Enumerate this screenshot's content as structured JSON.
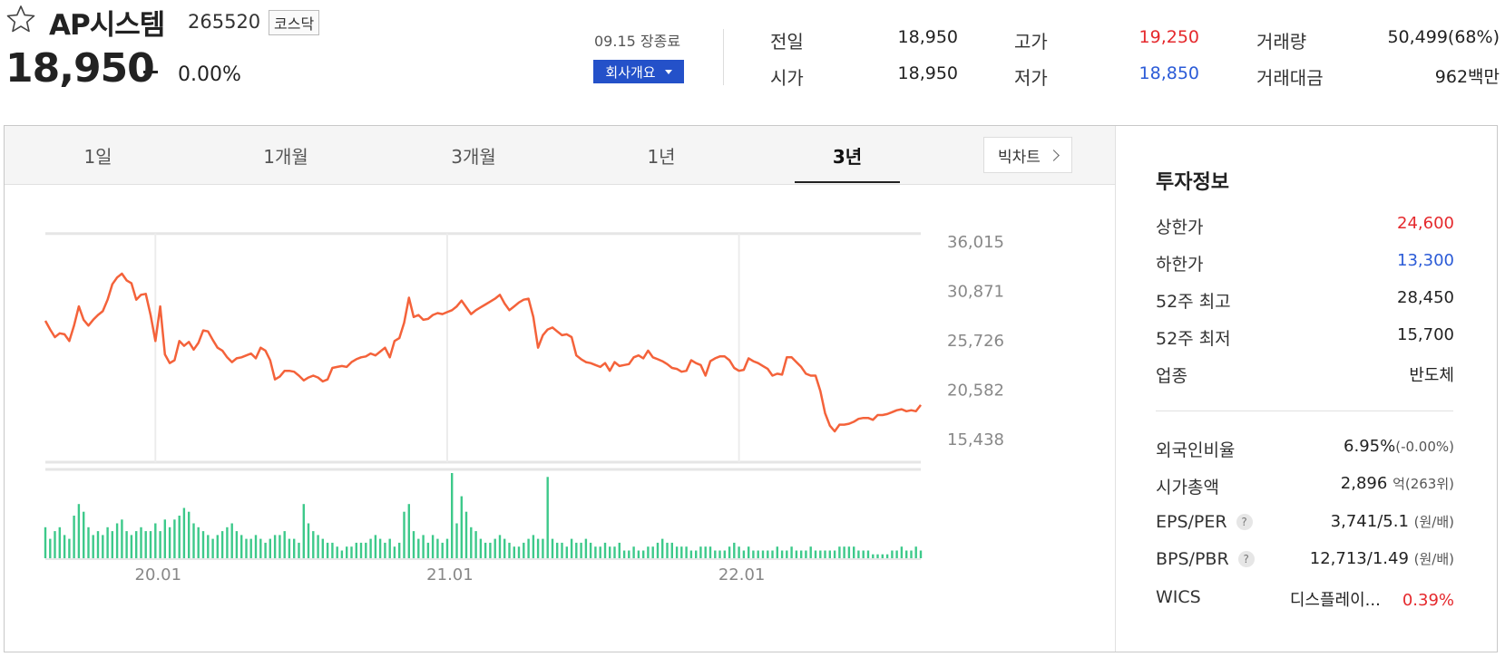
{
  "header": {
    "name": "AP시스템",
    "code": "265520",
    "market": "코스닥",
    "price": "18,950",
    "change_rate": "0.00%",
    "date_status": "09.15 장종료",
    "overview_button": "회사개요"
  },
  "quote": {
    "prev_close": {
      "label": "전일",
      "value": "18,950"
    },
    "open": {
      "label": "시가",
      "value": "18,950"
    },
    "high": {
      "label": "고가",
      "value": "19,250"
    },
    "low": {
      "label": "저가",
      "value": "18,850"
    },
    "volume": {
      "label": "거래량",
      "value": "50,499(68%)"
    },
    "trade_value": {
      "label": "거래대금",
      "value": "962백만"
    }
  },
  "tabs": [
    {
      "label": "1일"
    },
    {
      "label": "1개월"
    },
    {
      "label": "3개월"
    },
    {
      "label": "1년"
    },
    {
      "label": "3년"
    }
  ],
  "active_tab": "3년",
  "big_chart_button": "빅차트",
  "chart_data": {
    "type": "line",
    "y_ticks": [
      "36,015",
      "30,871",
      "25,726",
      "20,582",
      "15,438"
    ],
    "ylim": [
      13000,
      37500
    ],
    "x_ticks": [
      {
        "label": "20.01",
        "x": 23
      },
      {
        "label": "21.01",
        "x": 84
      },
      {
        "label": "22.01",
        "x": 145
      }
    ],
    "x_count": 184,
    "series": [
      {
        "type": "line",
        "color": "#f4623a",
        "values": [
          27700,
          26800,
          26000,
          26400,
          26300,
          25600,
          27200,
          29200,
          27800,
          27200,
          27800,
          28300,
          28700,
          29900,
          31500,
          32200,
          32600,
          31900,
          31600,
          29900,
          30400,
          30500,
          28300,
          25600,
          29200,
          24200,
          23300,
          23600,
          25600,
          25100,
          25500,
          24700,
          25400,
          26700,
          26600,
          25700,
          24900,
          24600,
          23900,
          23400,
          23800,
          23900,
          24100,
          24300,
          23800,
          24900,
          24600,
          23600,
          21600,
          21900,
          22500,
          22500,
          22400,
          22000,
          21500,
          21800,
          22000,
          21800,
          21400,
          21600,
          22800,
          22900,
          23000,
          22900,
          23400,
          23700,
          23900,
          24000,
          24300,
          24100,
          24500,
          24900,
          23900,
          25600,
          25900,
          27500,
          30100,
          28100,
          28300,
          27800,
          27900,
          28300,
          28500,
          28400,
          28600,
          28800,
          29200,
          29800,
          29100,
          28400,
          28800,
          29100,
          29400,
          29700,
          30000,
          30400,
          29500,
          28800,
          29200,
          29600,
          29900,
          30000,
          28100,
          24900,
          26200,
          26800,
          27000,
          26600,
          26200,
          26300,
          26000,
          24100,
          23700,
          23400,
          23300,
          23100,
          22900,
          23300,
          22500,
          23400,
          23000,
          23100,
          23200,
          23900,
          24100,
          23800,
          24600,
          23900,
          23700,
          23500,
          23200,
          22800,
          22700,
          22400,
          22500,
          23600,
          23300,
          23100,
          22000,
          23500,
          23800,
          24000,
          24000,
          23600,
          22800,
          22500,
          22600,
          23800,
          23500,
          23300,
          23000,
          22700,
          22000,
          22200,
          22100,
          23900,
          23900,
          23400,
          22900,
          22200,
          22000,
          22000,
          20400,
          18100,
          16800,
          16200,
          16900,
          16900,
          17000,
          17200,
          17500,
          17600,
          17600,
          17400,
          17900,
          17900,
          18000,
          18200,
          18400,
          18500,
          18300,
          18400,
          18300,
          18950
        ]
      }
    ],
    "volume_series": {
      "color": "#3dc98a",
      "values": [
        8,
        5,
        7,
        8,
        6,
        5,
        11,
        14,
        12,
        8,
        6,
        7,
        6,
        8,
        7,
        9,
        10,
        7,
        6,
        7,
        8,
        7,
        7,
        9,
        7,
        10,
        8,
        10,
        11,
        13,
        12,
        9,
        8,
        7,
        6,
        5,
        6,
        7,
        8,
        9,
        7,
        6,
        5,
        5,
        6,
        5,
        4,
        5,
        6,
        6,
        7,
        5,
        5,
        4,
        14,
        9,
        7,
        6,
        5,
        4,
        4,
        3,
        2,
        3,
        3,
        4,
        4,
        4,
        5,
        6,
        5,
        4,
        5,
        3,
        4,
        12,
        14,
        7,
        5,
        6,
        4,
        6,
        5,
        4,
        5,
        22,
        9,
        16,
        12,
        8,
        7,
        5,
        4,
        4,
        5,
        6,
        5,
        4,
        3,
        3,
        4,
        5,
        6,
        5,
        5,
        21,
        5,
        4,
        4,
        3,
        5,
        4,
        4,
        5,
        4,
        3,
        3,
        4,
        3,
        3,
        4,
        2,
        2,
        3,
        2,
        2,
        3,
        3,
        4,
        5,
        4,
        4,
        3,
        3,
        3,
        2,
        2,
        3,
        3,
        3,
        2,
        2,
        2,
        3,
        4,
        3,
        2,
        3,
        2,
        2,
        2,
        2,
        2,
        3,
        2,
        2,
        3,
        2,
        2,
        2,
        3,
        2,
        2,
        2,
        2,
        2,
        3,
        3,
        3,
        3,
        2,
        2,
        2,
        1,
        1,
        1,
        1,
        2,
        2,
        3,
        2,
        2,
        3,
        2
      ]
    }
  },
  "invest_info": {
    "title": "투자정보",
    "upper_limit": {
      "label": "상한가",
      "value": "24,600"
    },
    "lower_limit": {
      "label": "하한가",
      "value": "13,300"
    },
    "high_52w": {
      "label": "52주 최고",
      "value": "28,450"
    },
    "low_52w": {
      "label": "52주 최저",
      "value": "15,700"
    },
    "sector": {
      "label": "업종",
      "value": "반도체"
    },
    "foreign_ratio": {
      "label": "외국인비율",
      "value": "6.95%",
      "sub": "(-0.00%)"
    },
    "market_cap": {
      "label": "시가총액",
      "value": "2,896",
      "sub": "억(263위)"
    },
    "eps_per": {
      "label": "EPS/PER",
      "q": "?",
      "value": "3,741/5.1",
      "sub": "(원/배)"
    },
    "bps_pbr": {
      "label": "BPS/PBR",
      "q": "?",
      "value": "12,713/1.49",
      "sub": "(원/배)"
    },
    "wics": {
      "label": "WICS",
      "value": "디스플레이...",
      "change": "0.39%"
    }
  },
  "colors": {
    "up": "#e5292d",
    "down": "#2b5bd7",
    "accent": "#2451c9",
    "line": "#f4623a",
    "volume": "#3dc98a"
  }
}
